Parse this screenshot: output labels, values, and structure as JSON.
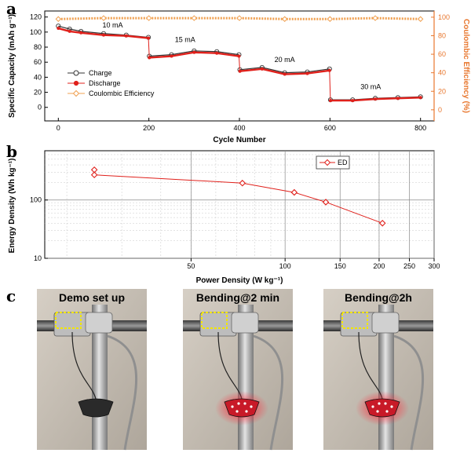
{
  "chart_data": [
    {
      "panel": "a",
      "type": "scatter",
      "xlabel": "Cycle Number",
      "ylabel": "Specific Capacity (mAh g⁻¹)",
      "y2label": "Coulombic Efficiency (%)",
      "xlim": [
        -30,
        830
      ],
      "ylim": [
        -18,
        128
      ],
      "y2lim": [
        -12,
        106.7
      ],
      "xticks": [
        0,
        200,
        400,
        600,
        800
      ],
      "yticks": [
        0,
        20,
        40,
        60,
        80,
        100,
        120
      ],
      "y2ticks": [
        0,
        20,
        40,
        60,
        80,
        100
      ],
      "legend_position": "left",
      "series": [
        {
          "name": "Charge",
          "color": "#333333",
          "marker": "open-circle",
          "segments": [
            {
              "x": [
                0,
                25,
                50,
                100,
                150,
                199
              ],
              "y": [
                108,
                104,
                101,
                98,
                96,
                93
              ]
            },
            {
              "x": [
                201,
                250,
                300,
                350,
                399
              ],
              "y": [
                68,
                70,
                75,
                74,
                70
              ]
            },
            {
              "x": [
                401,
                450,
                500,
                550,
                599
              ],
              "y": [
                50,
                53,
                46,
                47,
                51
              ]
            },
            {
              "x": [
                601,
                650,
                700,
                750,
                800
              ],
              "y": [
                10,
                10,
                12,
                13,
                14
              ]
            }
          ]
        },
        {
          "name": "Discharge",
          "color": "#e0201b",
          "marker": "filled-circle",
          "segments": [
            {
              "x": [
                0,
                25,
                50,
                100,
                150,
                199
              ],
              "y": [
                105,
                101,
                99,
                96,
                95,
                92
              ]
            },
            {
              "x": [
                201,
                250,
                300,
                350,
                399
              ],
              "y": [
                66,
                68,
                73,
                72,
                68
              ]
            },
            {
              "x": [
                401,
                450,
                500,
                550,
                599
              ],
              "y": [
                48,
                51,
                44,
                45,
                49
              ]
            },
            {
              "x": [
                601,
                650,
                700,
                750,
                800
              ],
              "y": [
                9,
                9,
                11,
                12,
                13
              ]
            }
          ]
        },
        {
          "name": "Coulombic Efficiency",
          "color": "#f0a050",
          "marker": "open-diamond",
          "axis": "right",
          "x": [
            0,
            100,
            200,
            300,
            400,
            500,
            600,
            700,
            800
          ],
          "y": [
            98,
            99,
            99,
            99,
            99,
            98,
            98,
            99,
            98
          ]
        }
      ],
      "annotations": [
        {
          "text": "10 mA",
          "x": 120,
          "y": 106
        },
        {
          "text": "15 mA",
          "x": 280,
          "y": 87
        },
        {
          "text": "20 mA",
          "x": 500,
          "y": 60
        },
        {
          "text": "30 mA",
          "x": 690,
          "y": 24
        }
      ]
    },
    {
      "panel": "b",
      "type": "line",
      "xlabel": "Power Density (W kg⁻¹)",
      "ylabel": "Energy Density (Wh kg⁻¹)",
      "xscale": "log",
      "yscale": "log",
      "xlim": [
        17,
        300
      ],
      "ylim": [
        10,
        700
      ],
      "xticks": [
        50,
        100,
        150,
        200,
        250,
        300
      ],
      "yticks": [
        10,
        100
      ],
      "grid": true,
      "legend_position": "top-right",
      "series": [
        {
          "name": "ED",
          "color": "#e0201b",
          "marker": "open-diamond",
          "x": [
            24.5,
            24.5,
            73,
            107,
            135,
            205
          ],
          "y": [
            330,
            270,
            195,
            135,
            92,
            40
          ]
        }
      ]
    }
  ],
  "panel_c": {
    "label": "c",
    "photos": [
      {
        "title": "Demo set up",
        "led": "off"
      },
      {
        "title": "Bending@2 min",
        "led": "on"
      },
      {
        "title": "Bending@2h",
        "led": "on"
      }
    ]
  },
  "labels": {
    "a": "a",
    "b": "b"
  },
  "colors": {
    "charge": "#333333",
    "discharge": "#e0201b",
    "ce": "#f0a050",
    "ce_axis": "#e8772e",
    "ed": "#e0201b",
    "led": "#ff2a3a"
  }
}
